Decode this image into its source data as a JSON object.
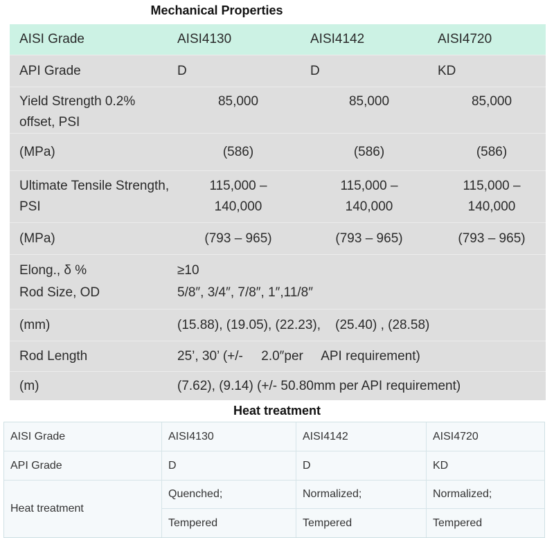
{
  "mechanical": {
    "title": "Mechanical Properties",
    "header": [
      "AISI Grade",
      "AISI4130",
      "AISI4142",
      "AISI4720"
    ],
    "api_grade": [
      "API Grade",
      "D",
      "D",
      "KD"
    ],
    "yield_strength": [
      "Yield Strength 0.2% offset, PSI",
      "85,000",
      "85,000",
      "85,000"
    ],
    "yield_mpa": [
      "(MPa)",
      "(586)",
      "(586)",
      "(586)"
    ],
    "tensile_strength": [
      "Ultimate Tensile Strength, PSI",
      "115,000 – 140,000",
      "115,000 – 140,000",
      "115,000 – 140,000"
    ],
    "tensile_mpa": [
      "(MPa)",
      "(793 – 965)",
      "(793 – 965)",
      "(793 – 965)"
    ],
    "elongation": [
      "Elong., δ %",
      "≥10"
    ],
    "rod_size": [
      "Rod Size, OD",
      "5/8″, 3/4″, 7/8″, 1″,11/8″"
    ],
    "rod_size_mm": [
      "(mm)",
      "(15.88), (19.05), (22.23),    (25.40) , (28.58)"
    ],
    "rod_length": [
      "Rod Length",
      "25’, 30’ (+/-     2.0″per     API requirement)"
    ],
    "rod_length_m": [
      "(m)",
      "(7.62), (9.14) (+/- 50.80mm per API requirement)"
    ]
  },
  "heat": {
    "title": "Heat treatment",
    "header": [
      "AISI Grade",
      "AISI4130",
      "AISI4142",
      "AISI4720"
    ],
    "api_grade": [
      "API Grade",
      "D",
      "D",
      "KD"
    ],
    "treatment_label": "Heat treatment",
    "treatment_row1": [
      "Quenched;",
      "Normalized;",
      "Normalized;"
    ],
    "treatment_row2": [
      "Tempered",
      "Tempered",
      "Tempered"
    ]
  }
}
